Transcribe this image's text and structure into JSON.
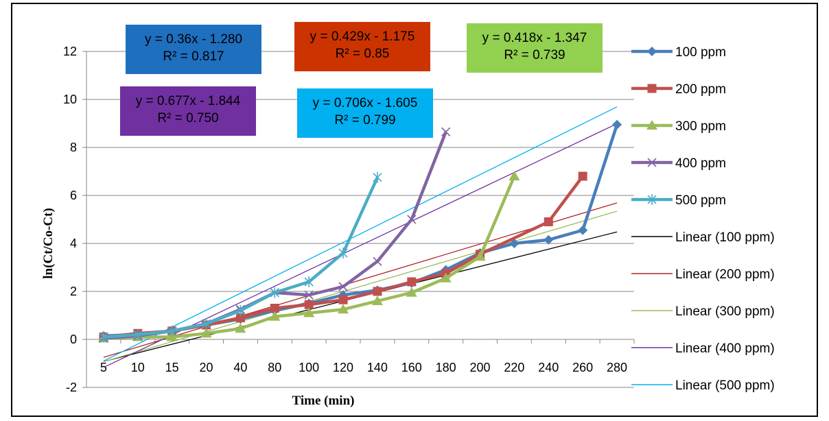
{
  "chart_data": {
    "type": "line",
    "xlabel": "Time (min)",
    "ylabel": "ln(Ct/Co-Ct)",
    "categories": [
      "5",
      "10",
      "15",
      "20",
      "40",
      "80",
      "100",
      "120",
      "140",
      "160",
      "180",
      "200",
      "220",
      "240",
      "260",
      "280"
    ],
    "ylim": [
      -2,
      12
    ],
    "yticks": [
      "-2",
      "0",
      "2",
      "4",
      "6",
      "8",
      "10",
      "12"
    ],
    "grid": true,
    "legend_position": "right",
    "series": [
      {
        "name": "100 ppm",
        "color": "#4a7ebb",
        "marker": "diamond",
        "values": [
          0.15,
          0.2,
          0.35,
          0.6,
          0.85,
          1.2,
          1.5,
          1.85,
          2.05,
          2.35,
          2.9,
          3.6,
          4.0,
          4.15,
          4.55,
          8.95
        ]
      },
      {
        "name": "200 ppm",
        "color": "#c0504d",
        "marker": "square",
        "values": [
          0.1,
          0.25,
          0.35,
          0.6,
          0.9,
          1.3,
          1.45,
          1.65,
          2.0,
          2.4,
          2.75,
          3.55,
          null,
          4.9,
          6.8,
          null
        ]
      },
      {
        "name": "300 ppm",
        "color": "#9bbb59",
        "marker": "triangle",
        "values": [
          0.05,
          0.1,
          0.1,
          0.25,
          0.45,
          0.95,
          1.1,
          1.25,
          1.6,
          1.95,
          2.55,
          3.45,
          6.8,
          null,
          null,
          null
        ]
      },
      {
        "name": "400 ppm",
        "color": "#8064a2",
        "marker": "x",
        "values": [
          0.05,
          0.15,
          0.35,
          0.65,
          1.25,
          1.95,
          1.85,
          2.2,
          3.25,
          5.0,
          8.65,
          null,
          null,
          null,
          null,
          null
        ]
      },
      {
        "name": "500 ppm",
        "color": "#4bacc6",
        "marker": "star",
        "values": [
          0.1,
          0.2,
          0.35,
          0.65,
          1.2,
          1.95,
          2.4,
          3.6,
          6.75,
          null,
          null,
          null,
          null,
          null,
          null,
          null
        ]
      }
    ],
    "trendlines": [
      {
        "name": "Linear (100 ppm)",
        "color": "#000000",
        "slope": 0.36,
        "intercept": -1.28,
        "equation": "y = 0.36x - 1.280",
        "r2": "R² = 0.817",
        "box_color": "#1f6fbf"
      },
      {
        "name": "Linear (200 ppm)",
        "color": "#b22222",
        "slope": 0.429,
        "intercept": -1.175,
        "equation": "y = 0.429x - 1.175",
        "r2": "R² = 0.85",
        "box_color": "#cc3300"
      },
      {
        "name": "Linear (300 ppm)",
        "color": "#9bbb59",
        "slope": 0.418,
        "intercept": -1.347,
        "equation": "y = 0.418x - 1.347",
        "r2": "R² = 0.739",
        "box_color": "#92d050"
      },
      {
        "name": "Linear (400 ppm)",
        "color": "#7030a0",
        "slope": 0.677,
        "intercept": -1.844,
        "equation": "y = 0.677x - 1.844",
        "r2": "R² = 0.750",
        "box_color": "#7030a0"
      },
      {
        "name": "Linear (500 ppm)",
        "color": "#00b0f0",
        "slope": 0.706,
        "intercept": -1.605,
        "equation": "y = 0.706x - 1.605",
        "r2": "R² = 0.799",
        "box_color": "#00b0f0"
      }
    ]
  }
}
